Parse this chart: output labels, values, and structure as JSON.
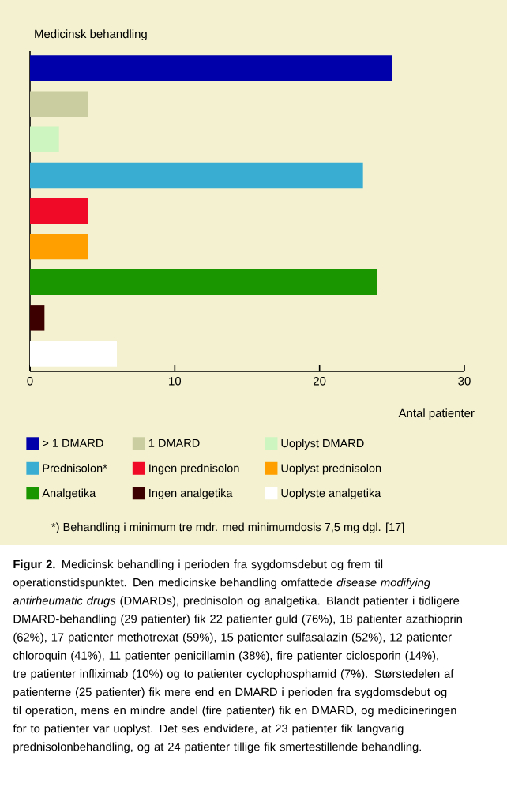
{
  "chart_data": {
    "type": "bar",
    "orientation": "horizontal",
    "title": "Medicinsk behandling",
    "xlabel": "Antal patienter",
    "categories": [
      null,
      null,
      null,
      null,
      null,
      null,
      null,
      null,
      null
    ],
    "series": [
      {
        "name": "> 1 DMARD",
        "color": "#0000aa",
        "values": [
          25,
          null,
          null,
          null,
          null,
          null,
          null,
          null,
          null
        ]
      },
      {
        "name": "1 DMARD",
        "color": "#c9cda0",
        "values": [
          null,
          4,
          null,
          null,
          null,
          null,
          null,
          null,
          null
        ]
      },
      {
        "name": "Uoplyst DMARD",
        "color": "#ccf5c0",
        "values": [
          null,
          null,
          2,
          null,
          null,
          null,
          null,
          null,
          null
        ]
      },
      {
        "name": "Prednisolon*",
        "color": "#3aaed2",
        "values": [
          null,
          null,
          null,
          23,
          null,
          null,
          null,
          null,
          null
        ]
      },
      {
        "name": "Ingen prednisolon",
        "color": "#f00a28",
        "values": [
          null,
          null,
          null,
          null,
          4,
          null,
          null,
          null,
          null
        ]
      },
      {
        "name": "Uoplyst prednisolon",
        "color": "#ffa000",
        "values": [
          null,
          null,
          null,
          null,
          null,
          4,
          null,
          null,
          null
        ]
      },
      {
        "name": "Analgetika",
        "color": "#1a9600",
        "values": [
          null,
          null,
          null,
          null,
          null,
          null,
          24,
          null,
          null
        ]
      },
      {
        "name": "Ingen analgetika",
        "color": "#3c0000",
        "values": [
          null,
          null,
          null,
          null,
          null,
          null,
          null,
          1,
          null
        ]
      },
      {
        "name": "Uoplyste analgetika",
        "color": "#ffffff",
        "values": [
          null,
          null,
          null,
          null,
          null,
          null,
          null,
          null,
          6
        ]
      }
    ],
    "xlim": [
      0,
      30
    ],
    "xticks": [
      0,
      10,
      20,
      30
    ],
    "legend": "bottom",
    "annotations": [
      "*) Behandling i minimum tre mdr. med minimumdosis 7,5 mg dgl. [17]",
      "**Figur 2.** Medicinsk behandling i perioden fra sygdomsdebut og frem til operationstidspunktet. Den medicinske behandling omfattede *disease modifying antirheumatic drugs* (DMARDs), prednisolon og analgetika. Blandt patienter i tidligere DMARD-behandling (29 patienter) fik 22 patienter guld (76%), 18 patienter azathioprin (62%), 17 patienter methotrexat (59%), 15 patienter sulfasalazin (52%), 12 patienter chloroquin (41%), 11 patienter penicillamin (38%), fire patienter ciclosporin (14%), tre patienter infliximab (10%) og to patienter cyclophosphamid (7%). Størstedelen af patienterne (25 patienter) fik mere end en DMARD i perioden fra sygdomsdebut og til operation, mens en mindre andel (fire patienter) fik en DMARD, og medicineringen for to patienter var uoplyst. Det ses endvidere, at 23 patienter fik langvarig prednisolonbehandling, og at 24 patienter tillige fik smertestillende behandling."
    ]
  }
}
